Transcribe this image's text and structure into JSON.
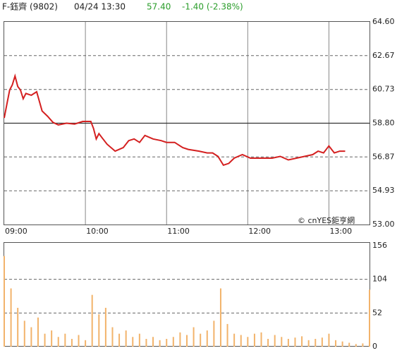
{
  "header": {
    "symbol": "F-鈺齊 (9802)",
    "datetime": "04/24 13:30",
    "price": "57.40",
    "change": "-1.40 (-2.38%)"
  },
  "watermark": "© cnYES鉅亨網",
  "chart_data": [
    {
      "type": "line",
      "color": "#d42020",
      "xlim": [
        "09:00",
        "13:30"
      ],
      "xticks": [
        "09:00",
        "10:00",
        "11:00",
        "12:00",
        "13:00"
      ],
      "ylim": [
        53,
        64.6
      ],
      "yticks": [
        {
          "value": 53,
          "label": "53.00"
        },
        54.93,
        56.87,
        {
          "value": 58.8,
          "label": "58.80"
        },
        60.73,
        62.67,
        {
          "value": 64.6,
          "label": "64.60"
        }
      ],
      "prev_close": 58.8,
      "x": [
        "09:00",
        "09:02",
        "09:04",
        "09:06",
        "09:08",
        "09:10",
        "09:12",
        "09:14",
        "09:16",
        "09:20",
        "09:24",
        "09:28",
        "09:32",
        "09:36",
        "09:40",
        "09:46",
        "09:52",
        "09:58",
        "10:04",
        "10:06",
        "10:08",
        "10:10",
        "10:12",
        "10:16",
        "10:22",
        "10:28",
        "10:32",
        "10:36",
        "10:40",
        "10:44",
        "10:50",
        "10:56",
        "11:00",
        "11:06",
        "11:12",
        "11:16",
        "11:24",
        "11:30",
        "11:34",
        "11:38",
        "11:42",
        "11:46",
        "11:50",
        "11:56",
        "12:02",
        "12:10",
        "12:18",
        "12:24",
        "12:30",
        "12:36",
        "12:42",
        "12:48",
        "12:52",
        "12:56",
        "13:00",
        "13:04",
        "13:08",
        "13:12"
      ],
      "values": [
        59.1,
        59.9,
        60.7,
        61.0,
        61.5,
        60.9,
        60.7,
        60.2,
        60.5,
        60.4,
        60.6,
        59.5,
        59.2,
        58.85,
        58.7,
        58.8,
        58.75,
        58.9,
        58.9,
        58.5,
        57.9,
        58.2,
        58.0,
        57.6,
        57.2,
        57.4,
        57.8,
        57.9,
        57.7,
        58.1,
        57.9,
        57.8,
        57.7,
        57.7,
        57.4,
        57.3,
        57.2,
        57.1,
        57.1,
        56.9,
        56.4,
        56.5,
        56.8,
        57.0,
        56.8,
        56.8,
        56.8,
        56.9,
        56.7,
        56.8,
        56.9,
        57.0,
        57.2,
        57.1,
        57.5,
        57.1,
        57.2,
        57.2
      ]
    },
    {
      "type": "bar",
      "color": "#f2b36b",
      "xlim": [
        "09:00",
        "13:30"
      ],
      "ylim": [
        0,
        156
      ],
      "yticks": [
        0,
        52,
        104,
        156
      ],
      "x": [
        "09:00",
        "09:05",
        "09:10",
        "09:15",
        "09:20",
        "09:25",
        "09:30",
        "09:35",
        "09:40",
        "09:45",
        "09:50",
        "09:55",
        "10:00",
        "10:05",
        "10:10",
        "10:15",
        "10:20",
        "10:25",
        "10:30",
        "10:35",
        "10:40",
        "10:45",
        "10:50",
        "10:55",
        "11:00",
        "11:05",
        "11:10",
        "11:15",
        "11:20",
        "11:25",
        "11:30",
        "11:35",
        "11:40",
        "11:45",
        "11:50",
        "11:55",
        "12:00",
        "12:05",
        "12:10",
        "12:15",
        "12:20",
        "12:25",
        "12:30",
        "12:35",
        "12:40",
        "12:45",
        "12:50",
        "12:55",
        "13:00",
        "13:05",
        "13:10",
        "13:15",
        "13:20",
        "13:25",
        "13:30"
      ],
      "values": [
        140,
        90,
        60,
        40,
        30,
        45,
        20,
        25,
        15,
        20,
        12,
        18,
        10,
        80,
        50,
        60,
        30,
        20,
        25,
        15,
        20,
        12,
        15,
        10,
        12,
        15,
        22,
        18,
        30,
        20,
        25,
        40,
        90,
        35,
        20,
        18,
        15,
        20,
        22,
        12,
        18,
        15,
        12,
        14,
        16,
        10,
        12,
        14,
        20,
        10,
        8,
        6,
        4,
        5,
        88
      ]
    }
  ]
}
